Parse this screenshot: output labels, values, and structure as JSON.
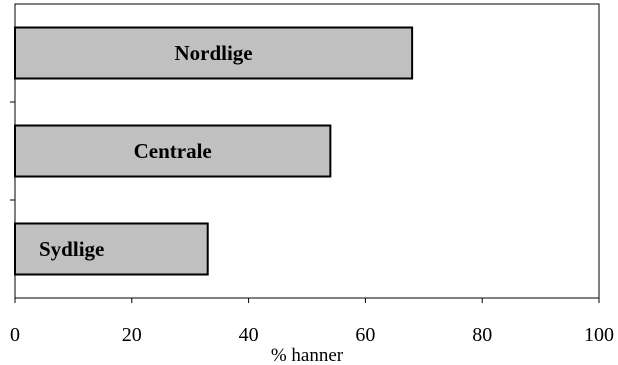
{
  "chart_data": {
    "type": "bar",
    "orientation": "horizontal",
    "categories": [
      "Nordlige",
      "Centrale",
      "Sydlige"
    ],
    "values": [
      68,
      54,
      33
    ],
    "xlabel": "% hanner",
    "xlim": [
      0,
      100
    ],
    "xticks": [
      0,
      20,
      40,
      60,
      80,
      100
    ],
    "grid": false,
    "legend": "none",
    "bar_color": "#c0c0c0",
    "bar_edge_color": "#000000"
  }
}
